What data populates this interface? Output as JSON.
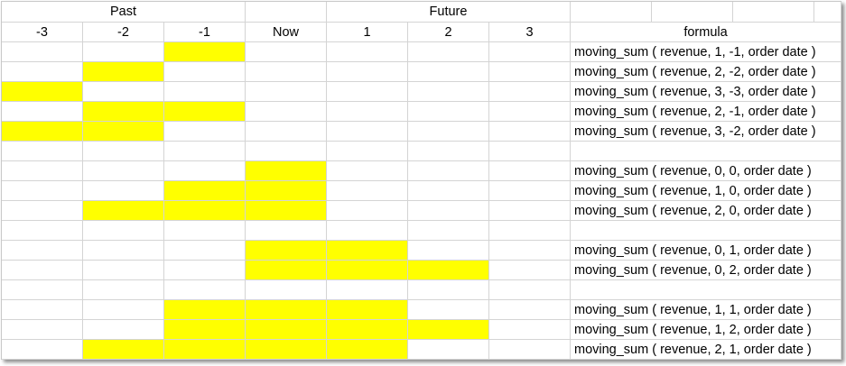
{
  "header": {
    "past_label": "Past",
    "future_label": "Future",
    "columns": [
      "-3",
      "-2",
      "-1",
      "Now",
      "1",
      "2",
      "3"
    ],
    "formula_label": "formula"
  },
  "highlight_color": "#ffff00",
  "rows": [
    {
      "highlight": [
        0,
        0,
        1,
        0,
        0,
        0,
        0
      ],
      "formula": "moving_sum ( revenue, 1, -1, order date )"
    },
    {
      "highlight": [
        0,
        1,
        0,
        0,
        0,
        0,
        0
      ],
      "formula": "moving_sum ( revenue, 2, -2, order date )"
    },
    {
      "highlight": [
        1,
        0,
        0,
        0,
        0,
        0,
        0
      ],
      "formula": "moving_sum ( revenue, 3, -3, order date )"
    },
    {
      "highlight": [
        0,
        1,
        1,
        0,
        0,
        0,
        0
      ],
      "formula": "moving_sum ( revenue, 2, -1, order date )"
    },
    {
      "highlight": [
        1,
        1,
        0,
        0,
        0,
        0,
        0
      ],
      "formula": "moving_sum ( revenue, 3, -2, order date )"
    },
    {
      "highlight": [
        0,
        0,
        0,
        0,
        0,
        0,
        0
      ],
      "formula": ""
    },
    {
      "highlight": [
        0,
        0,
        0,
        1,
        0,
        0,
        0
      ],
      "formula": "moving_sum ( revenue, 0, 0, order date )"
    },
    {
      "highlight": [
        0,
        0,
        1,
        1,
        0,
        0,
        0
      ],
      "formula": "moving_sum ( revenue, 1, 0, order date )"
    },
    {
      "highlight": [
        0,
        1,
        1,
        1,
        0,
        0,
        0
      ],
      "formula": "moving_sum ( revenue, 2, 0, order date )"
    },
    {
      "highlight": [
        0,
        0,
        0,
        0,
        0,
        0,
        0
      ],
      "formula": ""
    },
    {
      "highlight": [
        0,
        0,
        0,
        1,
        1,
        0,
        0
      ],
      "formula": "moving_sum ( revenue, 0, 1, order date )"
    },
    {
      "highlight": [
        0,
        0,
        0,
        1,
        1,
        1,
        0
      ],
      "formula": "moving_sum ( revenue, 0, 2, order date )"
    },
    {
      "highlight": [
        0,
        0,
        0,
        0,
        0,
        0,
        0
      ],
      "formula": ""
    },
    {
      "highlight": [
        0,
        0,
        1,
        1,
        1,
        0,
        0
      ],
      "formula": "moving_sum ( revenue, 1, 1, order date )"
    },
    {
      "highlight": [
        0,
        0,
        1,
        1,
        1,
        1,
        0
      ],
      "formula": "moving_sum ( revenue, 1, 2, order date )"
    },
    {
      "highlight": [
        0,
        1,
        1,
        1,
        1,
        0,
        0
      ],
      "formula": "moving_sum ( revenue, 2, 1, order date )"
    }
  ]
}
